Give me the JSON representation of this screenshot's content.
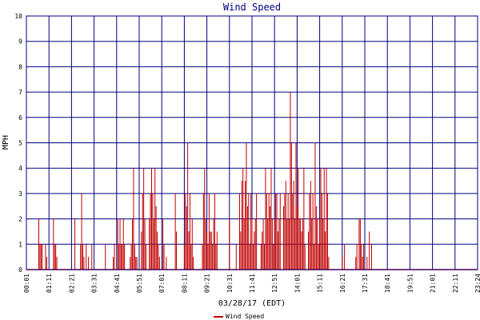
{
  "chart_data": {
    "type": "bar",
    "title": "Wind Speed",
    "xlabel": "03/28/17 (EDT)",
    "ylabel": "MPH",
    "ylim": [
      0,
      10
    ],
    "yticks": [
      "0",
      "1",
      "2",
      "3",
      "4",
      "5",
      "6",
      "7",
      "8",
      "9",
      "10"
    ],
    "xticks": [
      "00:01",
      "01:11",
      "02:21",
      "03:31",
      "04:41",
      "05:51",
      "07:01",
      "08:11",
      "09:21",
      "10:31",
      "11:41",
      "12:51",
      "14:01",
      "15:11",
      "16:21",
      "17:31",
      "18:41",
      "19:51",
      "21:01",
      "22:11",
      "23:24"
    ],
    "grid": true,
    "bar_color": "#c00000",
    "legend_position": "bottom-center",
    "series": [
      {
        "name": "Wind Speed",
        "points": [
          [
            0.55,
            2
          ],
          [
            0.6,
            1
          ],
          [
            0.65,
            1
          ],
          [
            0.7,
            1
          ],
          [
            0.85,
            1
          ],
          [
            0.9,
            0.5
          ],
          [
            1.2,
            2
          ],
          [
            1.25,
            1
          ],
          [
            1.3,
            1
          ],
          [
            1.35,
            0.5
          ],
          [
            2.15,
            2
          ],
          [
            2.4,
            1
          ],
          [
            2.45,
            3
          ],
          [
            2.5,
            1
          ],
          [
            2.55,
            0.5
          ],
          [
            2.65,
            1
          ],
          [
            2.75,
            0.5
          ],
          [
            2.9,
            1
          ],
          [
            3.5,
            1
          ],
          [
            3.85,
            0.5
          ],
          [
            3.9,
            1
          ],
          [
            4.05,
            2
          ],
          [
            4.1,
            1
          ],
          [
            4.15,
            2
          ],
          [
            4.2,
            1
          ],
          [
            4.25,
            1
          ],
          [
            4.3,
            2
          ],
          [
            4.35,
            1
          ],
          [
            4.6,
            0.5
          ],
          [
            4.65,
            1
          ],
          [
            4.7,
            2
          ],
          [
            4.75,
            4
          ],
          [
            4.8,
            1
          ],
          [
            4.85,
            0.5
          ],
          [
            4.9,
            0.5
          ],
          [
            5.1,
            1.5
          ],
          [
            5.15,
            3
          ],
          [
            5.2,
            4
          ],
          [
            5.25,
            2
          ],
          [
            5.3,
            1
          ],
          [
            5.45,
            2
          ],
          [
            5.5,
            3
          ],
          [
            5.55,
            4
          ],
          [
            5.6,
            3
          ],
          [
            5.65,
            2
          ],
          [
            5.7,
            4
          ],
          [
            5.75,
            2.5
          ],
          [
            5.8,
            1.5
          ],
          [
            5.85,
            1
          ],
          [
            5.9,
            0.5
          ],
          [
            6.05,
            2
          ],
          [
            6.1,
            1
          ],
          [
            6.2,
            0.5
          ],
          [
            6.6,
            3
          ],
          [
            6.65,
            1.5
          ],
          [
            7.0,
            1
          ],
          [
            7.05,
            3
          ],
          [
            7.1,
            2.5
          ],
          [
            7.15,
            5
          ],
          [
            7.2,
            1.5
          ],
          [
            7.25,
            3
          ],
          [
            7.3,
            1
          ],
          [
            7.35,
            2
          ],
          [
            7.4,
            0.5
          ],
          [
            7.8,
            1
          ],
          [
            7.85,
            3
          ],
          [
            7.9,
            4
          ],
          [
            7.95,
            2
          ],
          [
            8.0,
            1.5
          ],
          [
            8.05,
            1
          ],
          [
            8.1,
            3
          ],
          [
            8.15,
            1.5
          ],
          [
            8.2,
            1.5
          ],
          [
            8.25,
            1
          ],
          [
            8.3,
            2
          ],
          [
            8.35,
            3
          ],
          [
            8.4,
            1
          ],
          [
            8.45,
            1.5
          ],
          [
            9.0,
            2
          ],
          [
            9.3,
            1
          ],
          [
            9.45,
            3
          ],
          [
            9.5,
            1.5
          ],
          [
            9.55,
            3.5
          ],
          [
            9.6,
            4
          ],
          [
            9.65,
            2
          ],
          [
            9.7,
            3.5
          ],
          [
            9.75,
            5
          ],
          [
            9.8,
            2.5
          ],
          [
            9.85,
            3
          ],
          [
            9.9,
            1
          ],
          [
            9.95,
            3
          ],
          [
            10.0,
            2
          ],
          [
            10.05,
            1
          ],
          [
            10.1,
            1.5
          ],
          [
            10.15,
            2
          ],
          [
            10.2,
            3
          ],
          [
            10.4,
            1
          ],
          [
            10.45,
            1.5
          ],
          [
            10.5,
            2
          ],
          [
            10.55,
            1
          ],
          [
            10.6,
            4
          ],
          [
            10.65,
            3
          ],
          [
            10.7,
            2
          ],
          [
            10.75,
            3
          ],
          [
            10.8,
            2.5
          ],
          [
            10.85,
            4
          ],
          [
            10.9,
            2
          ],
          [
            10.95,
            1
          ],
          [
            11.0,
            2
          ],
          [
            11.05,
            3
          ],
          [
            11.1,
            3
          ],
          [
            11.15,
            1.5
          ],
          [
            11.2,
            2
          ],
          [
            11.25,
            3
          ],
          [
            11.4,
            2.5
          ],
          [
            11.45,
            3
          ],
          [
            11.5,
            3.5
          ],
          [
            11.55,
            2
          ],
          [
            11.6,
            3
          ],
          [
            11.65,
            2
          ],
          [
            11.7,
            7
          ],
          [
            11.75,
            5
          ],
          [
            11.8,
            3
          ],
          [
            11.85,
            3.5
          ],
          [
            11.9,
            2
          ],
          [
            11.95,
            5
          ],
          [
            12.0,
            2.5
          ],
          [
            12.05,
            4
          ],
          [
            12.1,
            2
          ],
          [
            12.15,
            2
          ],
          [
            12.2,
            1.5
          ],
          [
            12.25,
            2
          ],
          [
            12.3,
            4
          ],
          [
            12.35,
            1
          ],
          [
            12.5,
            1.5
          ],
          [
            12.55,
            3
          ],
          [
            12.6,
            3.5
          ],
          [
            12.65,
            2
          ],
          [
            12.7,
            3
          ],
          [
            12.75,
            1
          ],
          [
            12.8,
            5
          ],
          [
            12.85,
            2.5
          ],
          [
            12.9,
            2
          ],
          [
            12.95,
            1
          ],
          [
            13.0,
            2
          ],
          [
            13.05,
            4
          ],
          [
            13.1,
            3
          ],
          [
            13.15,
            2
          ],
          [
            13.2,
            4
          ],
          [
            13.25,
            1.5
          ],
          [
            13.3,
            4
          ],
          [
            13.35,
            3
          ],
          [
            13.4,
            0.5
          ],
          [
            14.0,
            0.5
          ],
          [
            14.1,
            1
          ],
          [
            14.6,
            0.5
          ],
          [
            14.65,
            1
          ],
          [
            14.75,
            2
          ],
          [
            14.8,
            2
          ],
          [
            14.85,
            1
          ],
          [
            14.9,
            0.5
          ],
          [
            14.95,
            1
          ],
          [
            15.1,
            0.5
          ],
          [
            15.2,
            1.5
          ],
          [
            15.3,
            1
          ]
        ]
      }
    ]
  }
}
